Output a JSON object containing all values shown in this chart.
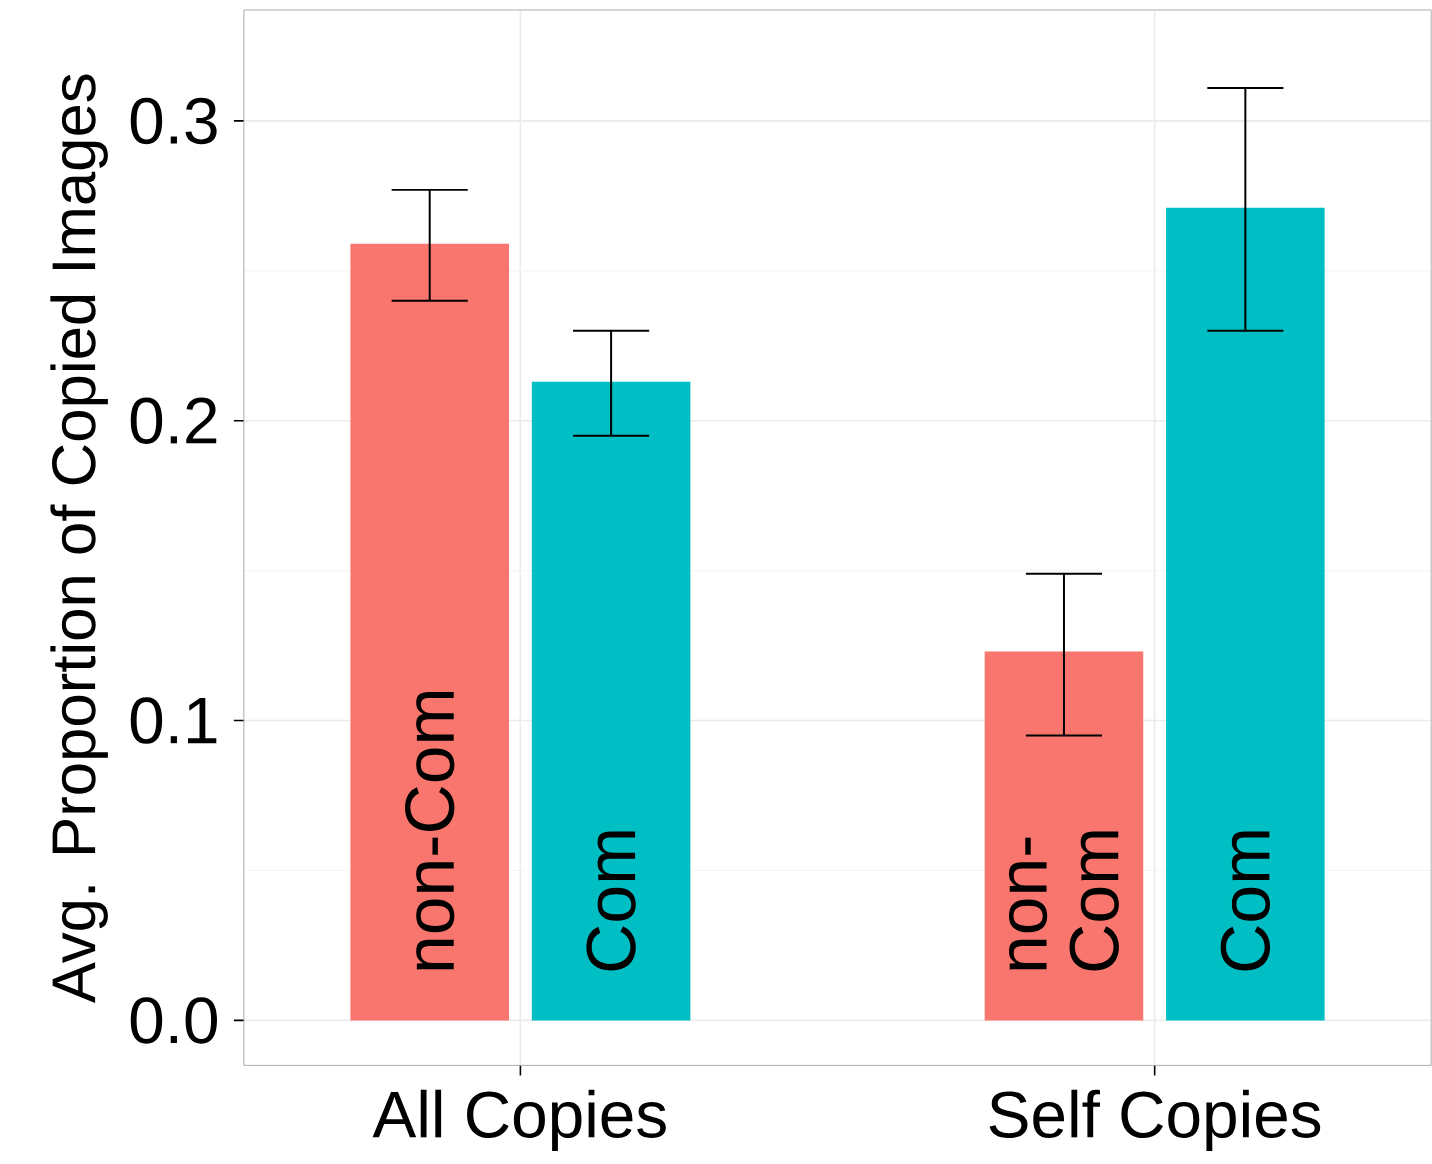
{
  "chart_data": {
    "type": "bar",
    "ylabel": "Avg. Proportion of Copied Images",
    "categories": [
      "All Copies",
      "Self Copies"
    ],
    "series": [
      {
        "name": "non-Com",
        "color": "#f8766d",
        "values": [
          0.259,
          0.123
        ],
        "errors": [
          [
            0.24,
            0.277
          ],
          [
            0.095,
            0.149
          ]
        ]
      },
      {
        "name": "Com",
        "color": "#00bfc4",
        "values": [
          0.213,
          0.271
        ],
        "errors": [
          [
            0.195,
            0.23
          ],
          [
            0.23,
            0.311
          ]
        ]
      }
    ],
    "ylim": [
      -0.015,
      0.337
    ],
    "yticks": [
      {
        "value": 0,
        "label": "0.0"
      },
      0.1,
      0.2,
      0.3
    ],
    "grid": true
  }
}
